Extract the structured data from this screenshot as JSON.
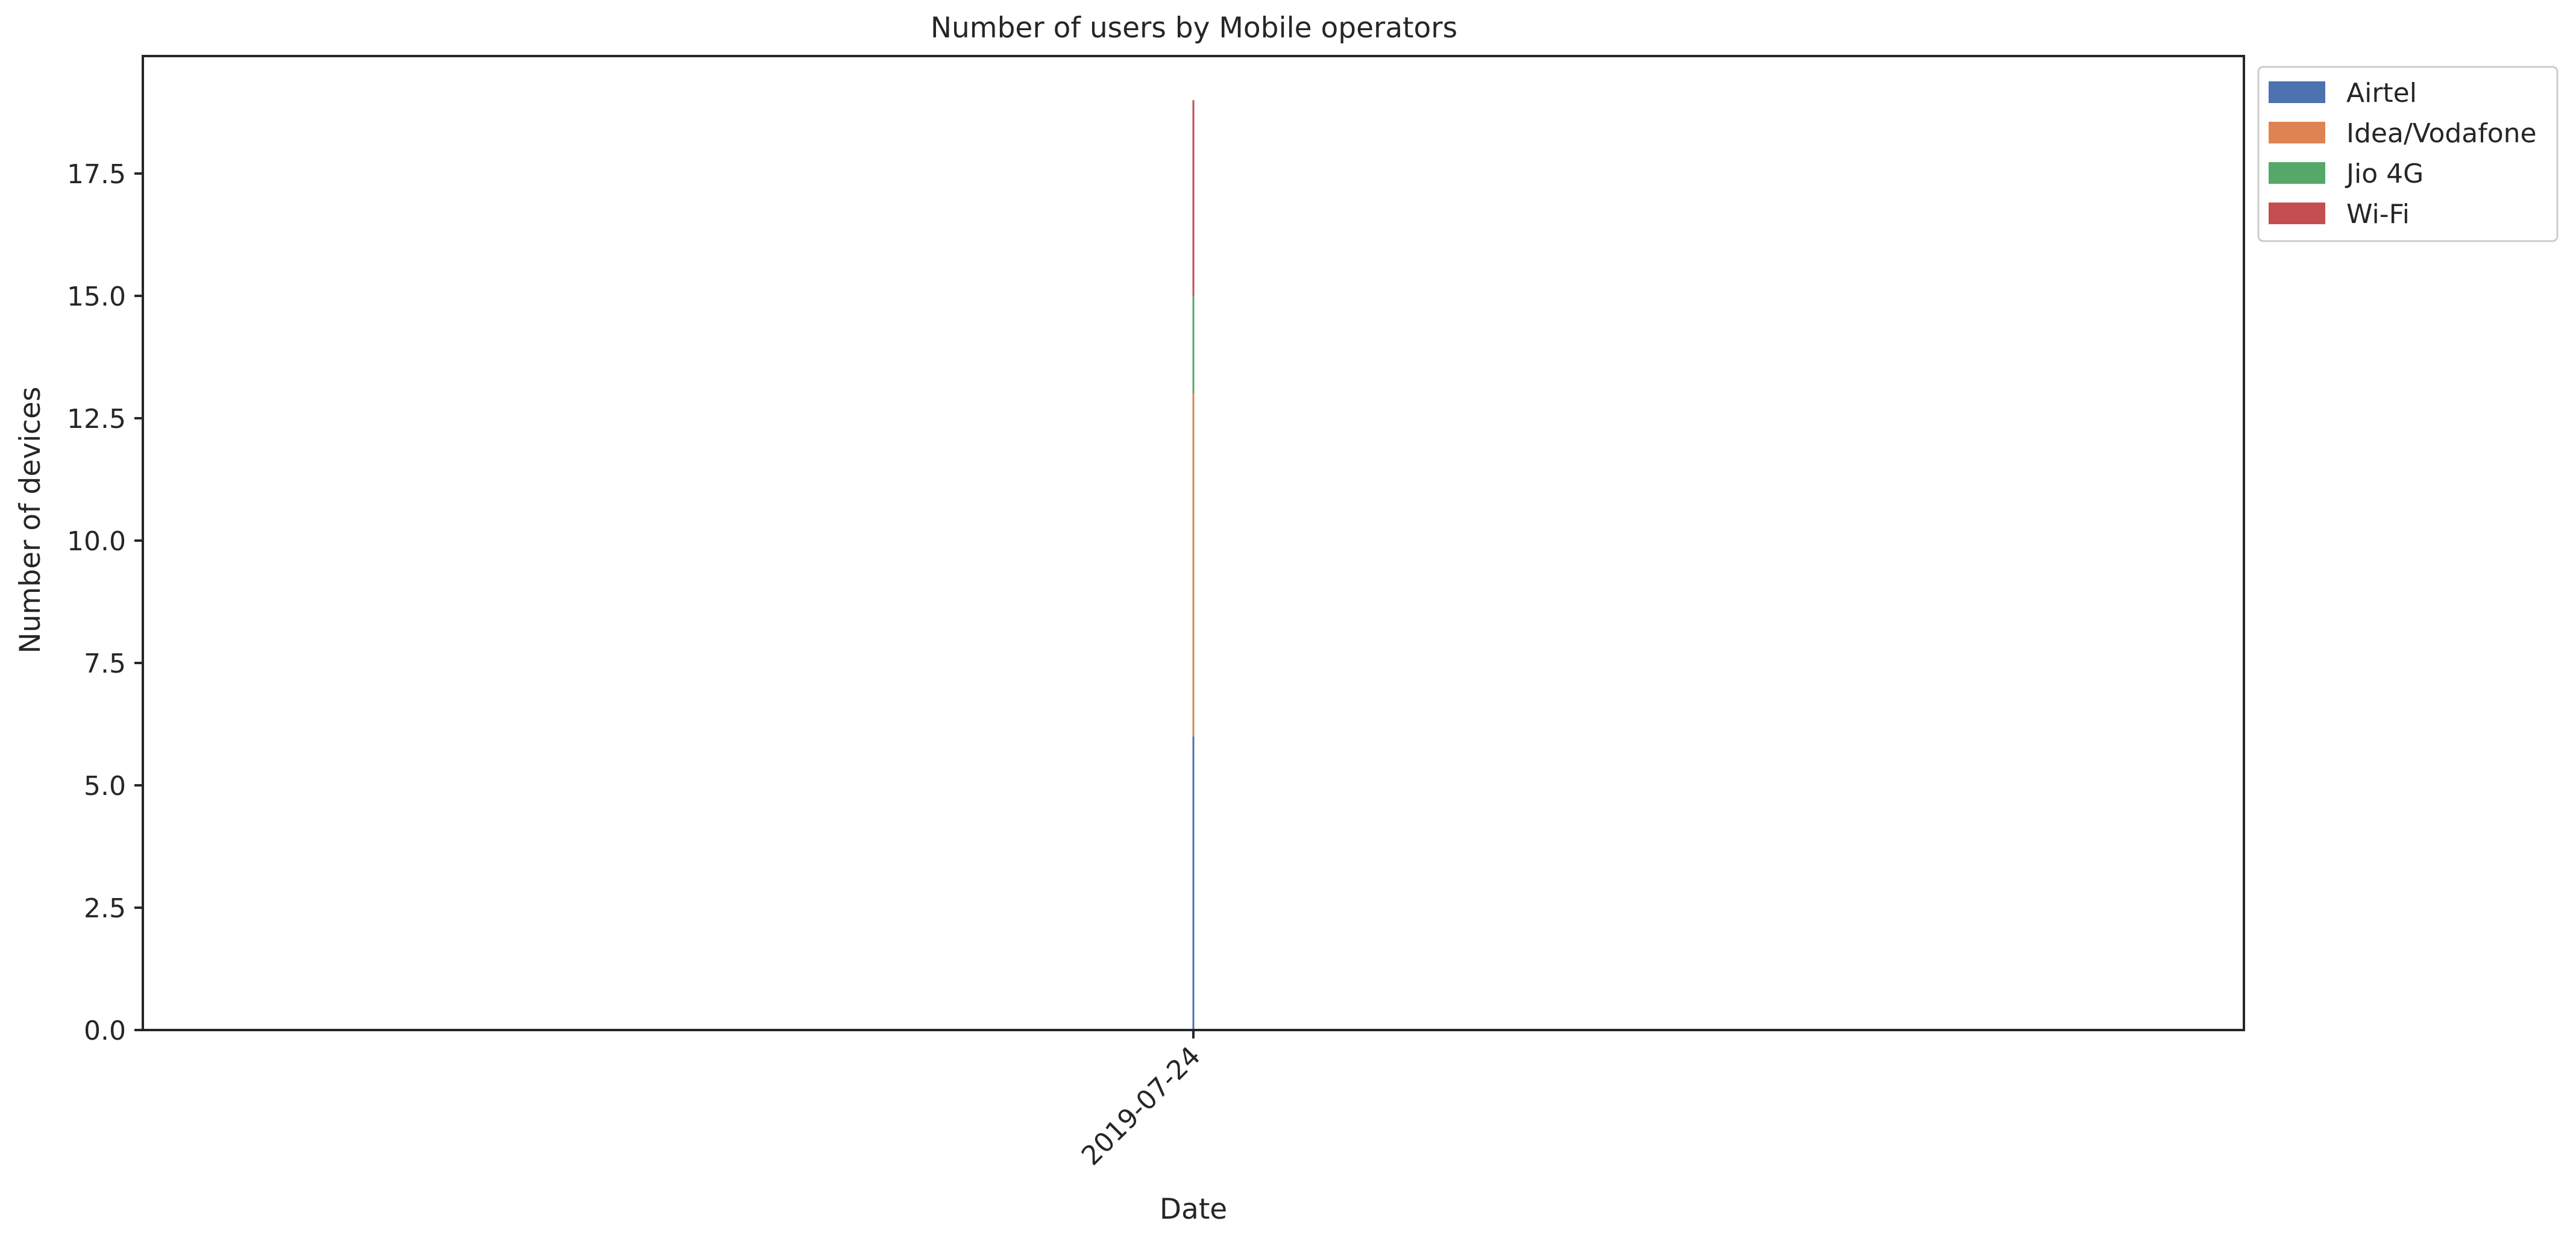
{
  "chart_data": {
    "type": "area",
    "title": "Number of users by Mobile operators",
    "xlabel": "Date",
    "ylabel": "Number of devices",
    "x_ticks": [
      "2019-07-24"
    ],
    "y_ticks": [
      "0.0",
      "2.5",
      "5.0",
      "7.5",
      "10.0",
      "12.5",
      "15.0",
      "17.5"
    ],
    "ylim": [
      0,
      19.9
    ],
    "grid": false,
    "stacked": true,
    "legend_position": "outside top-right",
    "series": [
      {
        "name": "Airtel",
        "color": "#4c72b0",
        "x": [
          "2019-07-24"
        ],
        "values": [
          6
        ]
      },
      {
        "name": "Idea/Vodafone",
        "color": "#dd8452",
        "x": [
          "2019-07-24"
        ],
        "values": [
          7
        ]
      },
      {
        "name": "Jio 4G",
        "color": "#55a868",
        "x": [
          "2019-07-24"
        ],
        "values": [
          2
        ]
      },
      {
        "name": "Wi-Fi",
        "color": "#c44e52",
        "x": [
          "2019-07-24"
        ],
        "values": [
          4
        ]
      }
    ]
  }
}
